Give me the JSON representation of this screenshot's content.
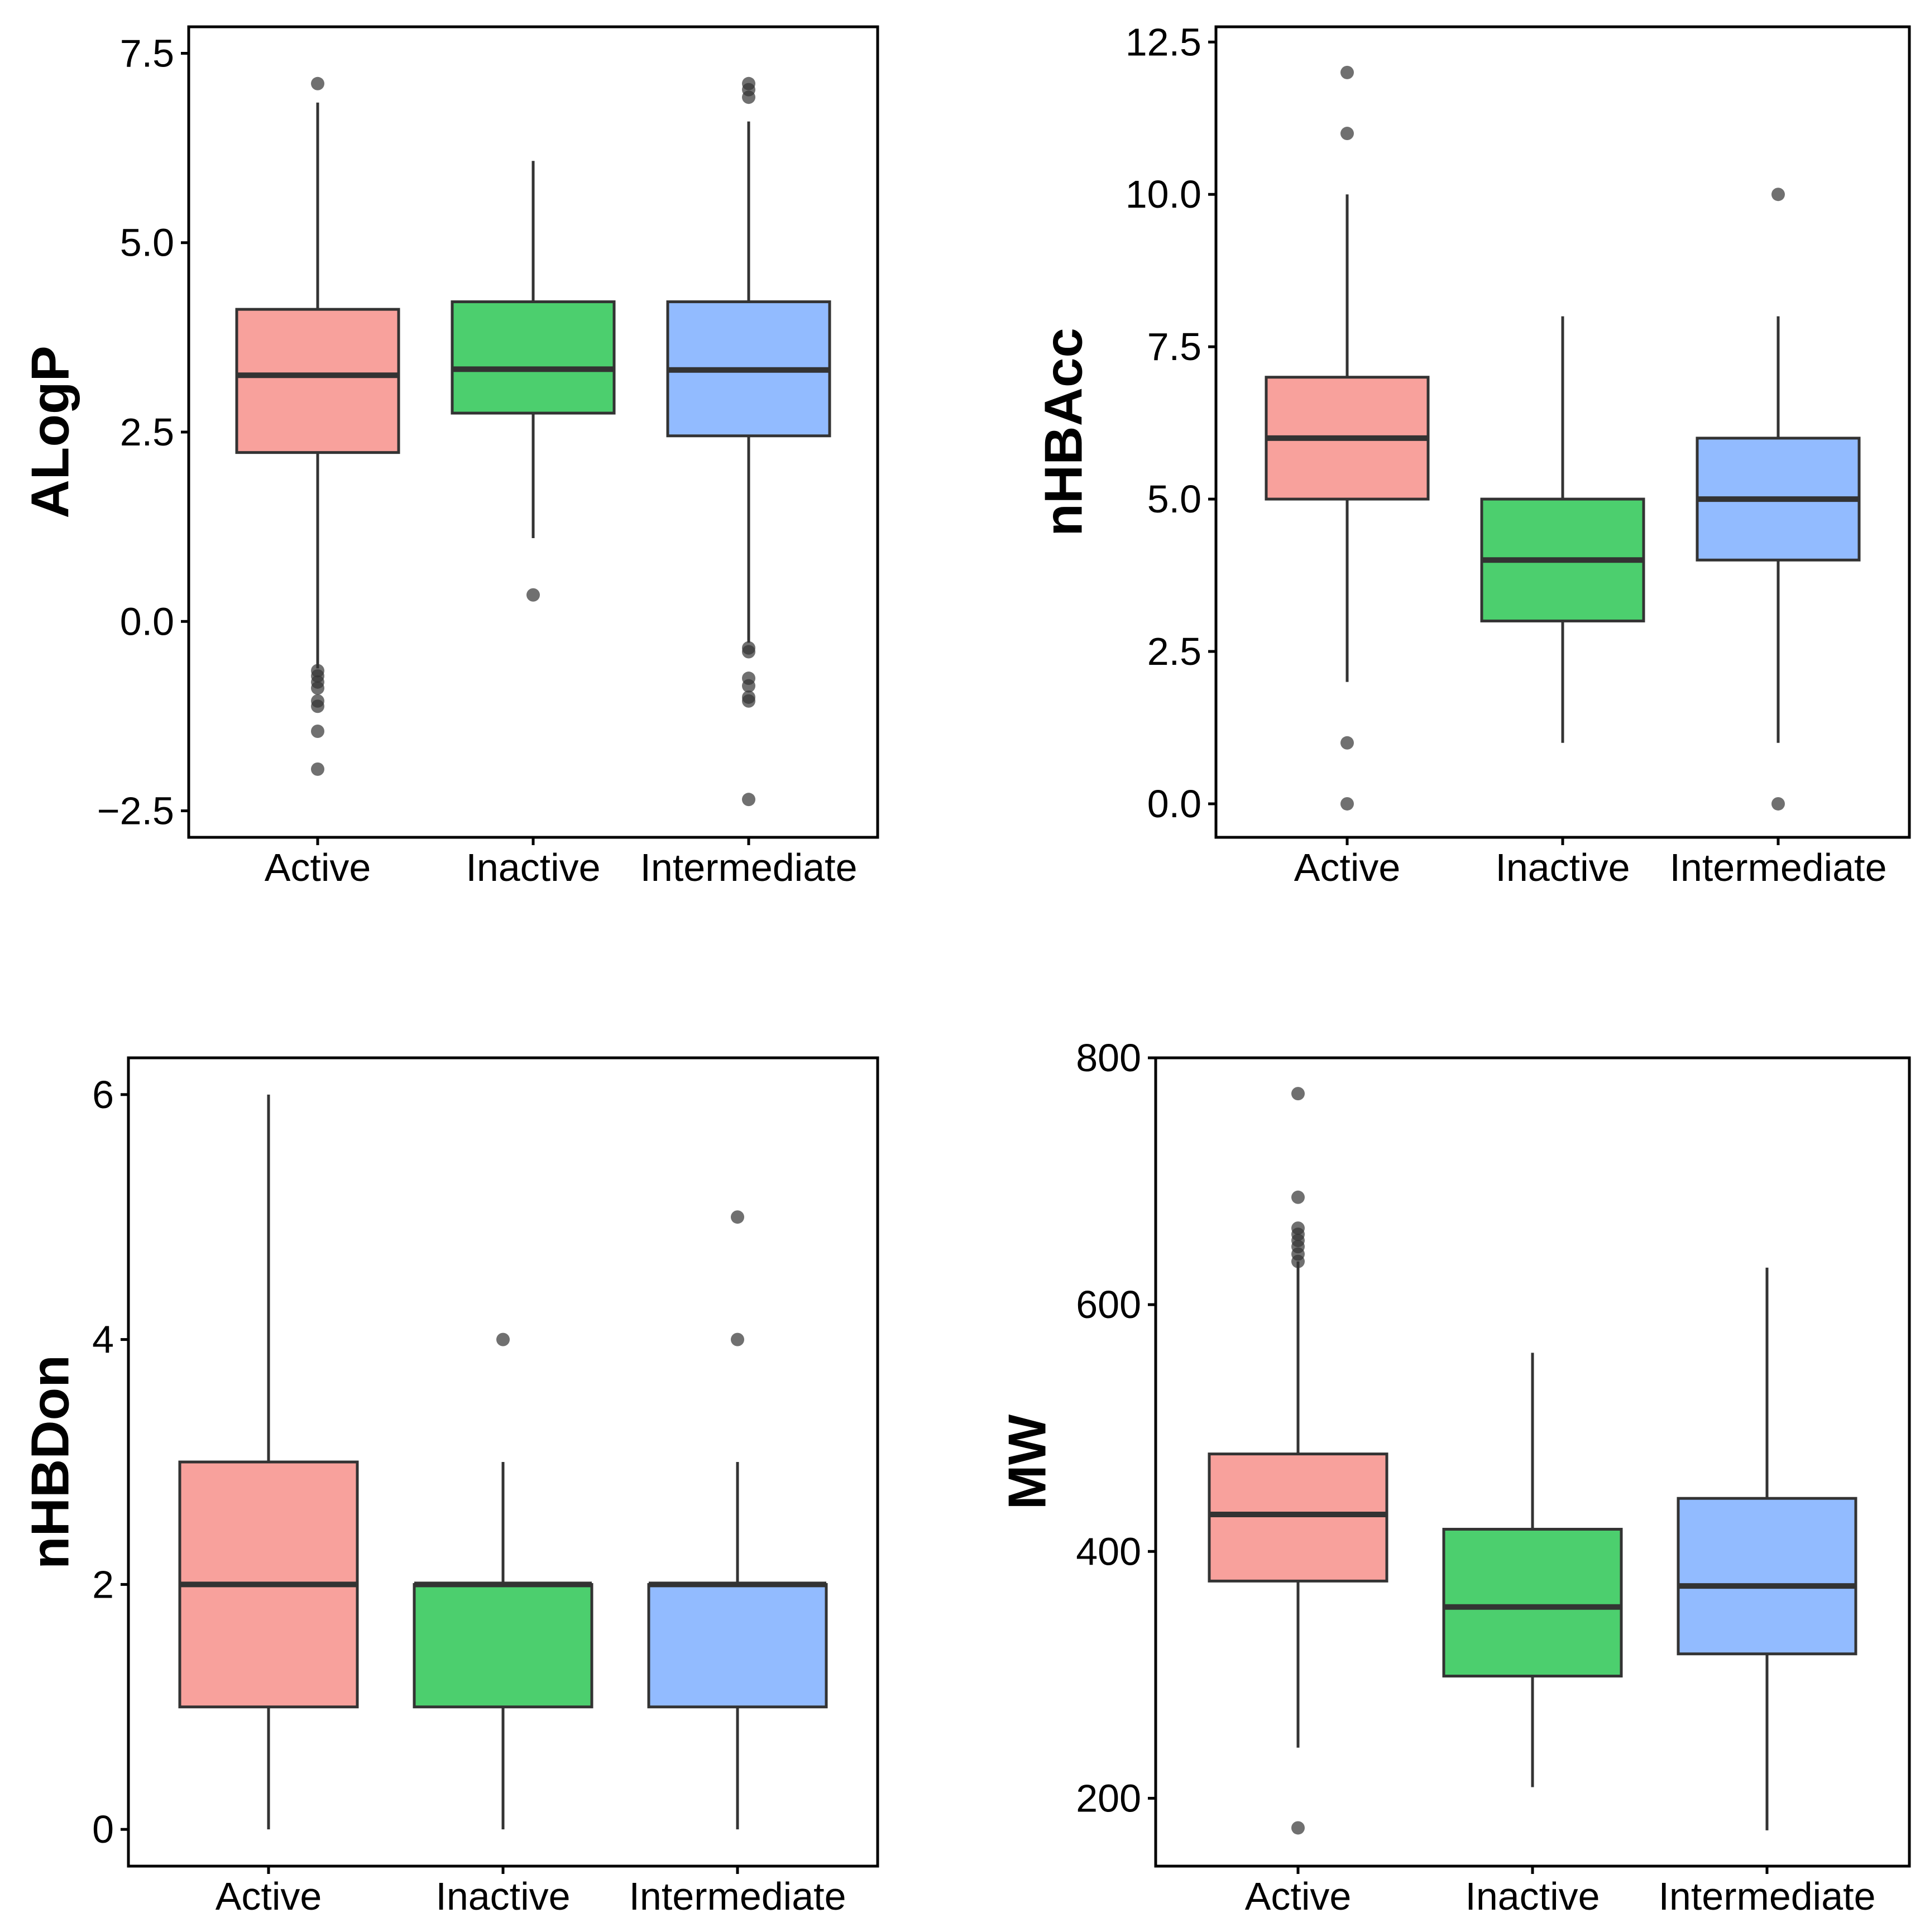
{
  "chart_data": [
    {
      "type": "box",
      "ylabel": "ALogP",
      "categories": [
        "Active",
        "Inactive",
        "Intermediate"
      ],
      "ylim": [
        -2.85,
        7.85
      ],
      "yticks": [
        -2.5,
        0.0,
        2.5,
        5.0,
        7.5
      ],
      "ytick_labels": [
        "−2.5",
        "0.0",
        "2.5",
        "5.0",
        "7.5"
      ],
      "boxes": [
        {
          "name": "Active",
          "color": "#F8A19C",
          "q1": 2.23,
          "median": 3.25,
          "q3": 4.12,
          "whisker_low": -0.62,
          "whisker_high": 6.85,
          "outliers": [
            7.1,
            -0.65,
            -0.72,
            -0.8,
            -0.88,
            -1.05,
            -1.12,
            -1.45,
            -1.95
          ]
        },
        {
          "name": "Inactive",
          "color": "#4CCF6E",
          "q1": 2.75,
          "median": 3.33,
          "q3": 4.22,
          "whisker_low": 1.1,
          "whisker_high": 6.08,
          "outliers": [
            0.35
          ]
        },
        {
          "name": "Intermediate",
          "color": "#92BBFF",
          "q1": 2.45,
          "median": 3.32,
          "q3": 4.22,
          "whisker_low": -0.28,
          "whisker_high": 6.6,
          "outliers": [
            7.1,
            7.02,
            6.92,
            -0.35,
            -0.4,
            -0.75,
            -0.85,
            -1.0,
            -1.05,
            -2.35
          ]
        }
      ]
    },
    {
      "type": "box",
      "ylabel": "nHBAcc",
      "categories": [
        "Active",
        "Inactive",
        "Intermediate"
      ],
      "ylim": [
        -0.55,
        12.75
      ],
      "yticks": [
        0.0,
        2.5,
        5.0,
        7.5,
        10.0,
        12.5
      ],
      "ytick_labels": [
        "0.0",
        "2.5",
        "5.0",
        "7.5",
        "10.0",
        "12.5"
      ],
      "boxes": [
        {
          "name": "Active",
          "color": "#F8A19C",
          "q1": 5,
          "median": 6,
          "q3": 7,
          "whisker_low": 2,
          "whisker_high": 10,
          "outliers": [
            12,
            11,
            1,
            0
          ]
        },
        {
          "name": "Inactive",
          "color": "#4CCF6E",
          "q1": 3,
          "median": 4,
          "q3": 5,
          "whisker_low": 1,
          "whisker_high": 8,
          "outliers": []
        },
        {
          "name": "Intermediate",
          "color": "#92BBFF",
          "q1": 4,
          "median": 5,
          "q3": 6,
          "whisker_low": 1,
          "whisker_high": 8,
          "outliers": [
            10,
            0
          ]
        }
      ]
    },
    {
      "type": "box",
      "ylabel": "nHBDon",
      "categories": [
        "Active",
        "Inactive",
        "Intermediate"
      ],
      "ylim": [
        -0.3,
        6.3
      ],
      "yticks": [
        0,
        2,
        4,
        6
      ],
      "ytick_labels": [
        "0",
        "2",
        "4",
        "6"
      ],
      "boxes": [
        {
          "name": "Active",
          "color": "#F8A19C",
          "q1": 1,
          "median": 2,
          "q3": 3,
          "whisker_low": 0,
          "whisker_high": 6,
          "outliers": []
        },
        {
          "name": "Inactive",
          "color": "#4CCF6E",
          "q1": 1,
          "median": 2,
          "q3": 2,
          "whisker_low": 0,
          "whisker_high": 3,
          "outliers": [
            4
          ]
        },
        {
          "name": "Intermediate",
          "color": "#92BBFF",
          "q1": 1,
          "median": 2,
          "q3": 2,
          "whisker_low": 0,
          "whisker_high": 3,
          "outliers": [
            5,
            4
          ]
        }
      ]
    },
    {
      "type": "box",
      "ylabel": "MW",
      "categories": [
        "Active",
        "Inactive",
        "Intermediate"
      ],
      "ylim": [
        145,
        800
      ],
      "yticks": [
        200,
        400,
        600,
        800
      ],
      "ytick_labels": [
        "200",
        "400",
        "600",
        "800"
      ],
      "boxes": [
        {
          "name": "Active",
          "color": "#F8A19C",
          "q1": 376,
          "median": 430,
          "q3": 479,
          "whisker_low": 241,
          "whisker_high": 635,
          "outliers": [
            771,
            687,
            662,
            657,
            652,
            647,
            641,
            635,
            176
          ]
        },
        {
          "name": "Inactive",
          "color": "#4CCF6E",
          "q1": 299,
          "median": 355,
          "q3": 418,
          "whisker_low": 209,
          "whisker_high": 561,
          "outliers": []
        },
        {
          "name": "Intermediate",
          "color": "#92BBFF",
          "q1": 317,
          "median": 372,
          "q3": 443,
          "whisker_low": 174,
          "whisker_high": 630,
          "outliers": []
        }
      ]
    }
  ]
}
